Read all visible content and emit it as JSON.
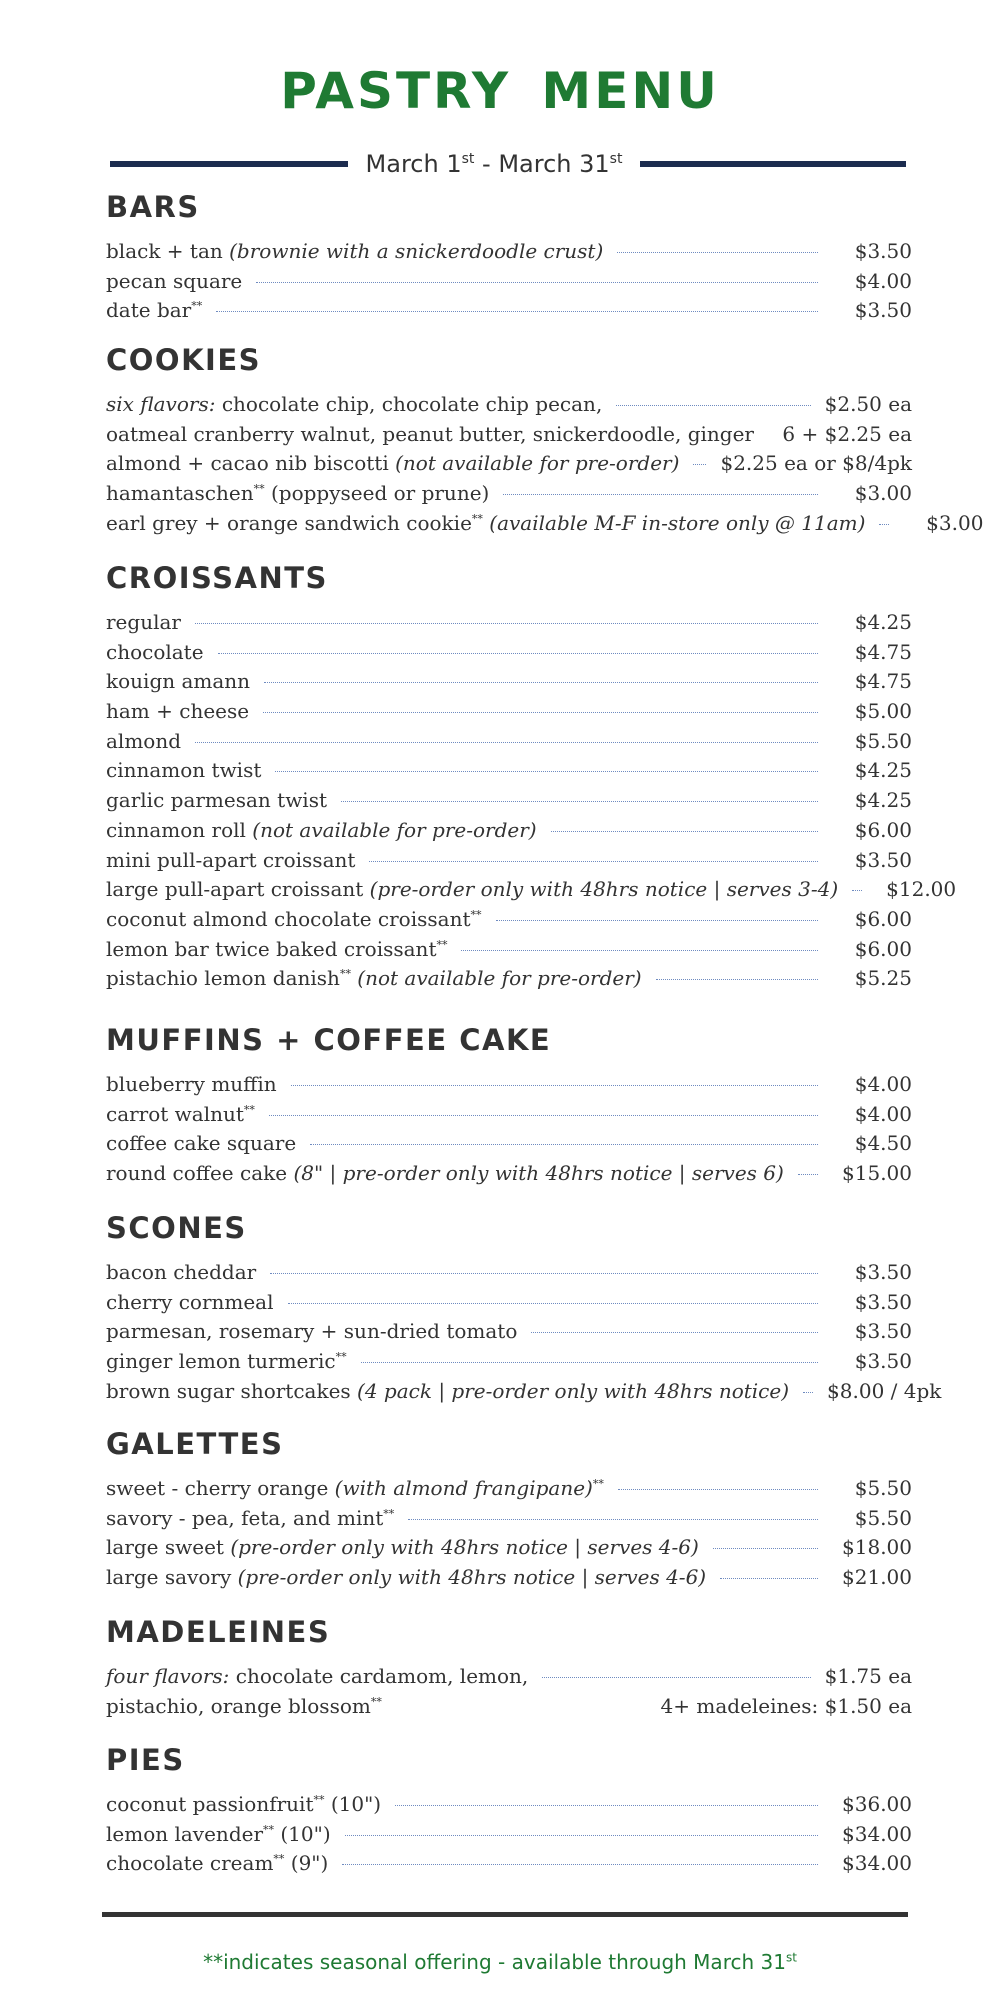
{
  "title": "PASTRY MENU",
  "dates": {
    "start": "March 1",
    "start_sup": "st",
    "sep": " - ",
    "end": "March 31",
    "end_sup": "st"
  },
  "sections": {
    "bars": {
      "heading": "BARS",
      "items": [
        {
          "name": "black + tan ",
          "note": "(brownie with a snickerdoodle crust)",
          "price": "$3.50"
        },
        {
          "name": "pecan square",
          "price": "$4.00"
        },
        {
          "name": "date bar",
          "mark": "**",
          "price": "$3.50"
        }
      ]
    },
    "cookies": {
      "heading": "COOKIES",
      "items": [
        {
          "note": "six flavors:",
          "name": " chocolate chip, chocolate chip pecan,",
          "price": "$2.50 ea"
        },
        {
          "name": "oatmeal cranberry walnut, peanut butter, snickerdoodle, ginger",
          "price": "6 + $2.25 ea"
        },
        {
          "name": "almond + cacao nib biscotti ",
          "note": "(not available for pre-order)",
          "price": "$2.25 ea or $8/4pk"
        },
        {
          "name": "hamantaschen",
          "mark": "**",
          "rest": " (poppyseed or prune)",
          "price": "$3.00"
        },
        {
          "name": "earl grey + orange sandwich cookie",
          "mark": "**",
          "note": " (available M-F in-store only @ 11am)",
          "price": "$3.00"
        }
      ]
    },
    "croissants": {
      "heading": "CROISSANTS",
      "items": [
        {
          "name": "regular",
          "price": "$4.25"
        },
        {
          "name": "chocolate",
          "price": "$4.75"
        },
        {
          "name": "kouign amann",
          "price": "$4.75"
        },
        {
          "name": "ham + cheese",
          "price": "$5.00"
        },
        {
          "name": "almond",
          "price": "$5.50"
        },
        {
          "name": "cinnamon twist",
          "price": "$4.25"
        },
        {
          "name": "garlic parmesan twist",
          "price": "$4.25"
        },
        {
          "name": "cinnamon roll ",
          "note": "(not available for pre-order)",
          "price": "$6.00"
        },
        {
          "name": "mini pull-apart croissant",
          "price": "$3.50"
        },
        {
          "name": "large pull-apart croissant ",
          "note": "(pre-order only with 48hrs notice | serves 3-4)",
          "price": "$12.00"
        },
        {
          "name": "coconut almond chocolate croissant",
          "mark": "**",
          "price": "$6.00"
        },
        {
          "name": "lemon bar twice baked croissant",
          "mark": "**",
          "price": "$6.00"
        },
        {
          "name": "pistachio lemon danish",
          "mark": "**",
          "note": " (not available for pre-order)",
          "price": "$5.25"
        }
      ]
    },
    "muffins": {
      "heading": "MUFFINS + COFFEE CAKE",
      "items": [
        {
          "name": "blueberry muffin",
          "price": "$4.00"
        },
        {
          "name": "carrot walnut",
          "mark": "**",
          "price": "$4.00"
        },
        {
          "name": "coffee cake square",
          "price": "$4.50"
        },
        {
          "name": "round coffee cake ",
          "note": "(8\" | pre-order only with 48hrs notice | serves 6)",
          "price": "$15.00"
        }
      ]
    },
    "scones": {
      "heading": "SCONES",
      "items": [
        {
          "name": "bacon cheddar",
          "price": "$3.50"
        },
        {
          "name": "cherry cornmeal",
          "price": "$3.50"
        },
        {
          "name": "parmesan, rosemary + sun-dried tomato",
          "price": "$3.50"
        },
        {
          "name": "ginger lemon turmeric",
          "mark": "**",
          "price": "$3.50"
        },
        {
          "name": "brown sugar shortcakes ",
          "note": "(4 pack | pre-order only with 48hrs notice)",
          "price": "$8.00 / 4pk"
        }
      ]
    },
    "galettes": {
      "heading": "GALETTES",
      "items": [
        {
          "name": "sweet - cherry orange ",
          "note": "(with almond frangipane)",
          "mark": "**",
          "price": "$5.50"
        },
        {
          "name": "savory - pea, feta, and mint",
          "mark": "**",
          "price": "$5.50"
        },
        {
          "name": "large sweet ",
          "note": "(pre-order only with 48hrs notice | serves 4-6)",
          "price": "$18.00"
        },
        {
          "name": "large savory ",
          "note": "(pre-order only with 48hrs notice | serves 4-6)",
          "price": "$21.00"
        }
      ]
    },
    "madeleines": {
      "heading": "MADELEINES",
      "items": [
        {
          "note": "four flavors:",
          "name": " chocolate cardamom, lemon,",
          "price": "$1.75 ea"
        },
        {
          "name": "pistachio, orange blossom",
          "mark": "**",
          "price": "4+ madeleines: $1.50 ea"
        }
      ]
    },
    "pies": {
      "heading": "PIES",
      "items": [
        {
          "name": "coconut passionfruit",
          "mark": "**",
          "rest": " (10\")",
          "price": "$36.00"
        },
        {
          "name": "lemon lavender",
          "mark": "**",
          "rest": " (10\")",
          "price": "$34.00"
        },
        {
          "name": "chocolate cream",
          "mark": "**",
          "rest": " (9\")",
          "price": "$34.00"
        }
      ]
    }
  },
  "footnote": {
    "text": "**indicates seasonal offering - available through March 31",
    "sup": "st"
  },
  "colors": {
    "title": "#1f7a33",
    "rule": "#1c2c4f",
    "dots": "#6f8bc0",
    "footnote": "#1f7a33"
  }
}
